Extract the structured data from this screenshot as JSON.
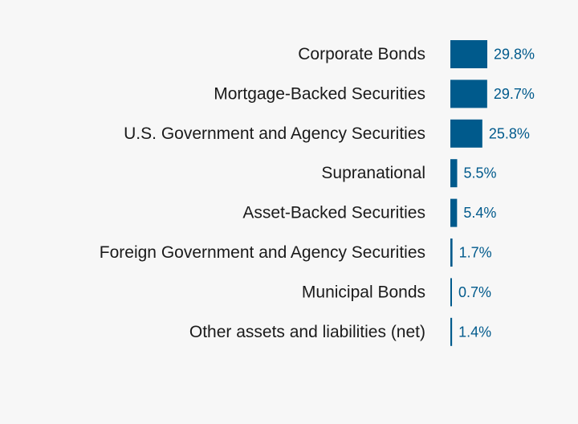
{
  "chart_data": {
    "type": "bar",
    "orientation": "horizontal",
    "categories": [
      "Corporate Bonds",
      "Mortgage-Backed Securities",
      "U.S. Government and Agency Securities",
      "Supranational",
      "Asset-Backed Securities",
      "Foreign Government and Agency Securities",
      "Municipal Bonds",
      "Other assets and liabilities (net)"
    ],
    "values": [
      29.8,
      29.7,
      25.8,
      5.5,
      5.4,
      1.7,
      0.7,
      1.4
    ],
    "value_labels": [
      "29.8%",
      "29.7%",
      "25.8%",
      "5.5%",
      "5.4%",
      "1.7%",
      "0.7%",
      "1.4%"
    ],
    "bar_color": "#005a8c",
    "label_color": "#005a8c",
    "grid": false,
    "legend": "none"
  }
}
